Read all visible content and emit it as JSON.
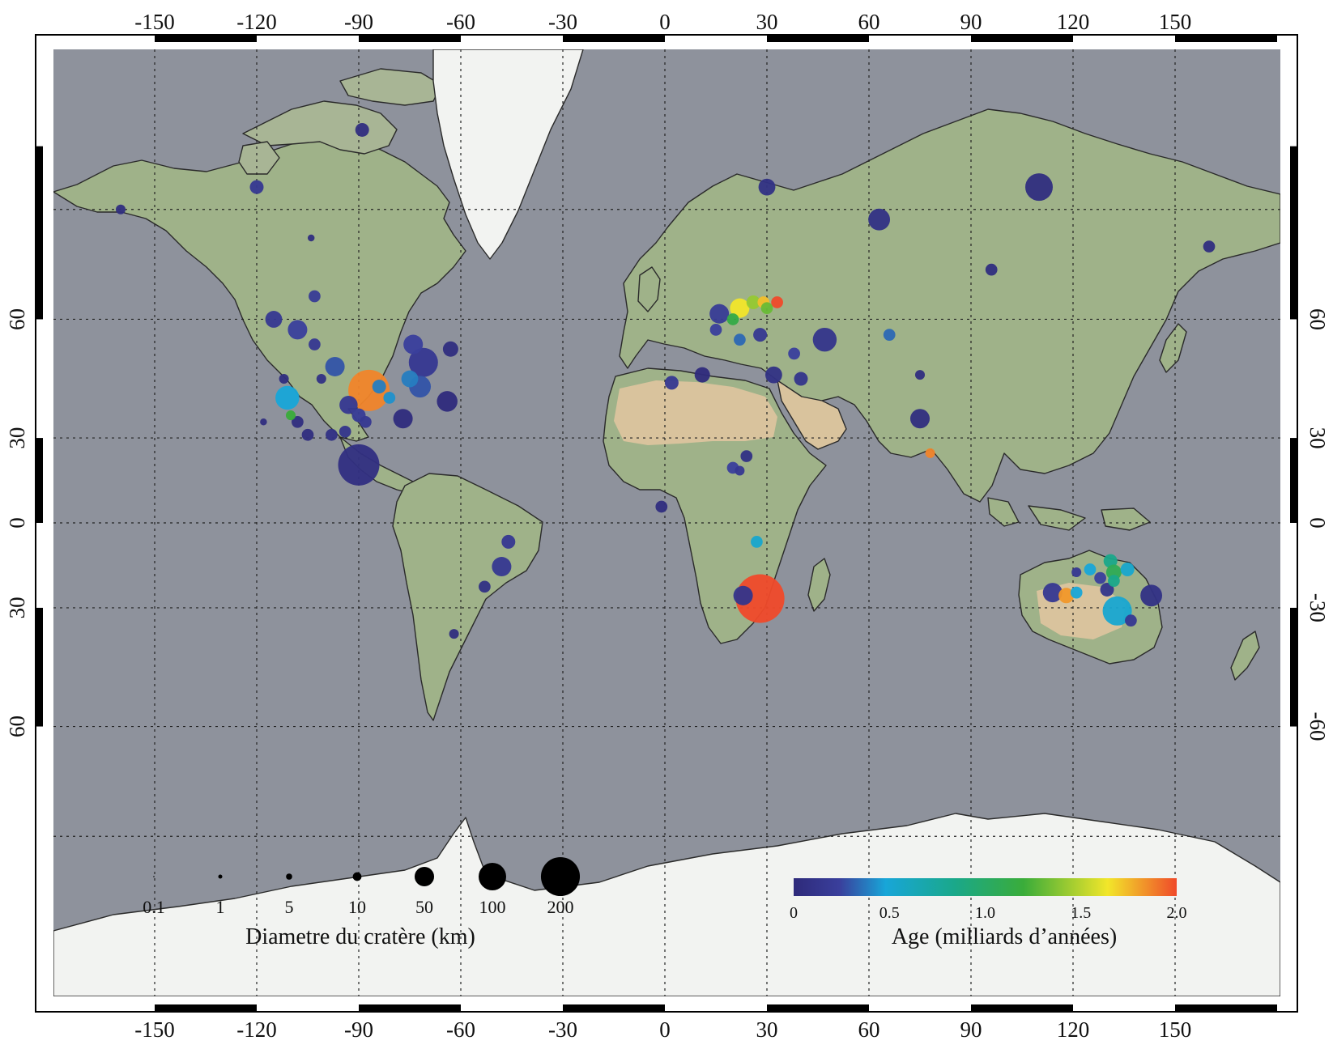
{
  "map": {
    "colors": {
      "ocean": "#8e929c",
      "land": "#9fb289",
      "desert": "#d9c39d",
      "ice": "#f2f3f1",
      "coast": "#2a2a2a",
      "grid": "#222222"
    }
  },
  "axes": {
    "x_ticks": [
      "-150",
      "-120",
      "-90",
      "-60",
      "-30",
      "0",
      "30",
      "60",
      "90",
      "120",
      "150"
    ],
    "y_ticks_left": [
      "60",
      "30",
      "0",
      "30",
      "60"
    ],
    "y_ticks_right": [
      "60",
      "30",
      "0",
      "-30",
      "-60"
    ]
  },
  "legend": {
    "size": {
      "title": "Diametre du cratère (km)",
      "items": [
        {
          "label": "0.1",
          "km": 0.1
        },
        {
          "label": "1",
          "km": 1
        },
        {
          "label": "5",
          "km": 5
        },
        {
          "label": "10",
          "km": 10
        },
        {
          "label": "50",
          "km": 50
        },
        {
          "label": "100",
          "km": 100
        },
        {
          "label": "200",
          "km": 200
        }
      ]
    },
    "age": {
      "title": "Age (milliards d’années)",
      "ticks": [
        "0",
        "0.5",
        "1.0",
        "1.5",
        "2.0"
      ],
      "gradient": [
        "#2e2a7a",
        "#3d3f9c",
        "#18a6d8",
        "#1aa88a",
        "#3aac3a",
        "#f2e62a",
        "#f04a2a"
      ]
    }
  },
  "chart_data": {
    "type": "scatter",
    "x_label": "",
    "y_label": "",
    "xlim": [
      -180,
      180
    ],
    "ylim": [
      -80,
      80
    ],
    "size_unit": "km",
    "color_unit": "Ga",
    "craters": [
      {
        "lon": -87,
        "lat": 44,
        "diam": 180,
        "age": 1.85
      },
      {
        "lon": -90,
        "lat": 21,
        "diam": 180,
        "age": 0.07
      },
      {
        "lon": 28,
        "lat": -27,
        "diam": 250,
        "age": 2.02
      },
      {
        "lon": 23,
        "lat": -26,
        "diam": 40,
        "age": 0.15
      },
      {
        "lon": 133,
        "lat": -31,
        "diam": 90,
        "age": 0.58
      },
      {
        "lon": 143,
        "lat": -26,
        "diam": 50,
        "age": 0.1
      },
      {
        "lon": 114,
        "lat": -25,
        "diam": 40,
        "age": 0.2
      },
      {
        "lon": 118,
        "lat": -26,
        "diam": 25,
        "age": 1.8
      },
      {
        "lon": -111,
        "lat": 42,
        "diam": 60,
        "age": 0.55
      },
      {
        "lon": -71,
        "lat": 51,
        "diam": 90,
        "age": 0.2
      },
      {
        "lon": -72,
        "lat": 45,
        "diam": 50,
        "age": 0.35
      },
      {
        "lon": -64,
        "lat": 41,
        "diam": 45,
        "age": 0.02
      },
      {
        "lon": -97,
        "lat": 50,
        "diam": 40,
        "age": 0.35
      },
      {
        "lon": -77,
        "lat": 36,
        "diam": 40,
        "age": 0.03
      },
      {
        "lon": -93,
        "lat": 40,
        "diam": 35,
        "age": 0.2
      },
      {
        "lon": -108,
        "lat": 58,
        "diam": 40,
        "age": 0.3
      },
      {
        "lon": -115,
        "lat": 60,
        "diam": 30,
        "age": 0.2
      },
      {
        "lon": -74,
        "lat": 55,
        "diam": 40,
        "age": 0.3
      },
      {
        "lon": -63,
        "lat": 54,
        "diam": 25,
        "age": 0.05
      },
      {
        "lon": -75,
        "lat": 47,
        "diam": 30,
        "age": 0.45
      },
      {
        "lon": -103,
        "lat": 55,
        "diam": 15,
        "age": 0.2
      },
      {
        "lon": -103,
        "lat": 64,
        "diam": 15,
        "age": 0.25
      },
      {
        "lon": -84,
        "lat": 45,
        "diam": 20,
        "age": 0.45
      },
      {
        "lon": -81,
        "lat": 42,
        "diam": 15,
        "age": 0.5
      },
      {
        "lon": -90,
        "lat": 37,
        "diam": 20,
        "age": 0.25
      },
      {
        "lon": -88,
        "lat": 35,
        "diam": 15,
        "age": 0.2
      },
      {
        "lon": -94,
        "lat": 32,
        "diam": 15,
        "age": 0.15
      },
      {
        "lon": -105,
        "lat": 31,
        "diam": 15,
        "age": 0.05
      },
      {
        "lon": -98,
        "lat": 31,
        "diam": 15,
        "age": 0.1
      },
      {
        "lon": -108,
        "lat": 35,
        "diam": 15,
        "age": 0.05
      },
      {
        "lon": -110,
        "lat": 37,
        "diam": 10,
        "age": 1.2
      },
      {
        "lon": -118,
        "lat": 35,
        "diam": 5,
        "age": 0.05
      },
      {
        "lon": -101,
        "lat": 47,
        "diam": 10,
        "age": 0.1
      },
      {
        "lon": -112,
        "lat": 47,
        "diam": 10,
        "age": 0.05
      },
      {
        "lon": -120,
        "lat": 77,
        "diam": 20,
        "age": 0.2
      },
      {
        "lon": -89,
        "lat": 81,
        "diam": 20,
        "age": 0.05
      },
      {
        "lon": -160,
        "lat": 75,
        "diam": 10,
        "age": 0.05
      },
      {
        "lon": -104,
        "lat": 72,
        "diam": 5,
        "age": 0.05
      },
      {
        "lon": 47,
        "lat": 56,
        "diam": 60,
        "age": 0.15
      },
      {
        "lon": 63,
        "lat": 74,
        "diam": 50,
        "age": 0.1
      },
      {
        "lon": 110,
        "lat": 77,
        "diam": 80,
        "age": 0.05
      },
      {
        "lon": 30,
        "lat": 77,
        "diam": 30,
        "age": 0.1
      },
      {
        "lon": 75,
        "lat": 36,
        "diam": 40,
        "age": 0.05
      },
      {
        "lon": 22,
        "lat": 62,
        "diam": 40,
        "age": 1.6
      },
      {
        "lon": 16,
        "lat": 61,
        "diam": 40,
        "age": 0.25
      },
      {
        "lon": 26,
        "lat": 63,
        "diam": 20,
        "age": 1.4
      },
      {
        "lon": 29,
        "lat": 63,
        "diam": 15,
        "age": 1.7
      },
      {
        "lon": 33,
        "lat": 63,
        "diam": 15,
        "age": 2.0
      },
      {
        "lon": 20,
        "lat": 60,
        "diam": 15,
        "age": 1.15
      },
      {
        "lon": 30,
        "lat": 62,
        "diam": 15,
        "age": 1.3
      },
      {
        "lon": 15,
        "lat": 58,
        "diam": 15,
        "age": 0.3
      },
      {
        "lon": 22,
        "lat": 56,
        "diam": 15,
        "age": 0.4
      },
      {
        "lon": 28,
        "lat": 57,
        "diam": 20,
        "age": 0.2
      },
      {
        "lon": 38,
        "lat": 53,
        "diam": 15,
        "age": 0.3
      },
      {
        "lon": 32,
        "lat": 48,
        "diam": 30,
        "age": 0.1
      },
      {
        "lon": 40,
        "lat": 47,
        "diam": 20,
        "age": 0.15
      },
      {
        "lon": 11,
        "lat": 48,
        "diam": 25,
        "age": 0.02
      },
      {
        "lon": 2,
        "lat": 46,
        "diam": 20,
        "age": 0.2
      },
      {
        "lon": 75,
        "lat": 48,
        "diam": 10,
        "age": 0.05
      },
      {
        "lon": 96,
        "lat": 68,
        "diam": 15,
        "age": 0.05
      },
      {
        "lon": 160,
        "lat": 71,
        "diam": 15,
        "age": 0.05
      },
      {
        "lon": 66,
        "lat": 57,
        "diam": 15,
        "age": 0.4
      },
      {
        "lon": 24,
        "lat": 24,
        "diam": 15,
        "age": 0.1
      },
      {
        "lon": 20,
        "lat": 20,
        "diam": 15,
        "age": 0.3
      },
      {
        "lon": 22,
        "lat": 19,
        "diam": 10,
        "age": 0.2
      },
      {
        "lon": 78,
        "lat": 25,
        "diam": 10,
        "age": 1.85
      },
      {
        "lon": 27,
        "lat": -7,
        "diam": 15,
        "age": 0.6
      },
      {
        "lon": -48,
        "lat": -16,
        "diam": 40,
        "age": 0.2
      },
      {
        "lon": -46,
        "lat": -7,
        "diam": 20,
        "age": 0.2
      },
      {
        "lon": -53,
        "lat": -23,
        "diam": 15,
        "age": 0.1
      },
      {
        "lon": -62,
        "lat": -38,
        "diam": 10,
        "age": 0.05
      },
      {
        "lon": -1,
        "lat": 6,
        "diam": 15,
        "age": 0.05
      },
      {
        "lon": 125,
        "lat": -17,
        "diam": 15,
        "age": 0.55
      },
      {
        "lon": 131,
        "lat": -14,
        "diam": 20,
        "age": 0.9
      },
      {
        "lon": 132,
        "lat": -18,
        "diam": 25,
        "age": 1.1
      },
      {
        "lon": 128,
        "lat": -20,
        "diam": 15,
        "age": 0.3
      },
      {
        "lon": 130,
        "lat": -24,
        "diam": 20,
        "age": 0.15
      },
      {
        "lon": 132,
        "lat": -21,
        "diam": 15,
        "age": 0.9
      },
      {
        "lon": 136,
        "lat": -17,
        "diam": 20,
        "age": 0.6
      },
      {
        "lon": 121,
        "lat": -25,
        "diam": 15,
        "age": 0.55
      },
      {
        "lon": 121,
        "lat": -18,
        "diam": 10,
        "age": 0.2
      },
      {
        "lon": 137,
        "lat": -34,
        "diam": 15,
        "age": 0.2
      }
    ]
  }
}
